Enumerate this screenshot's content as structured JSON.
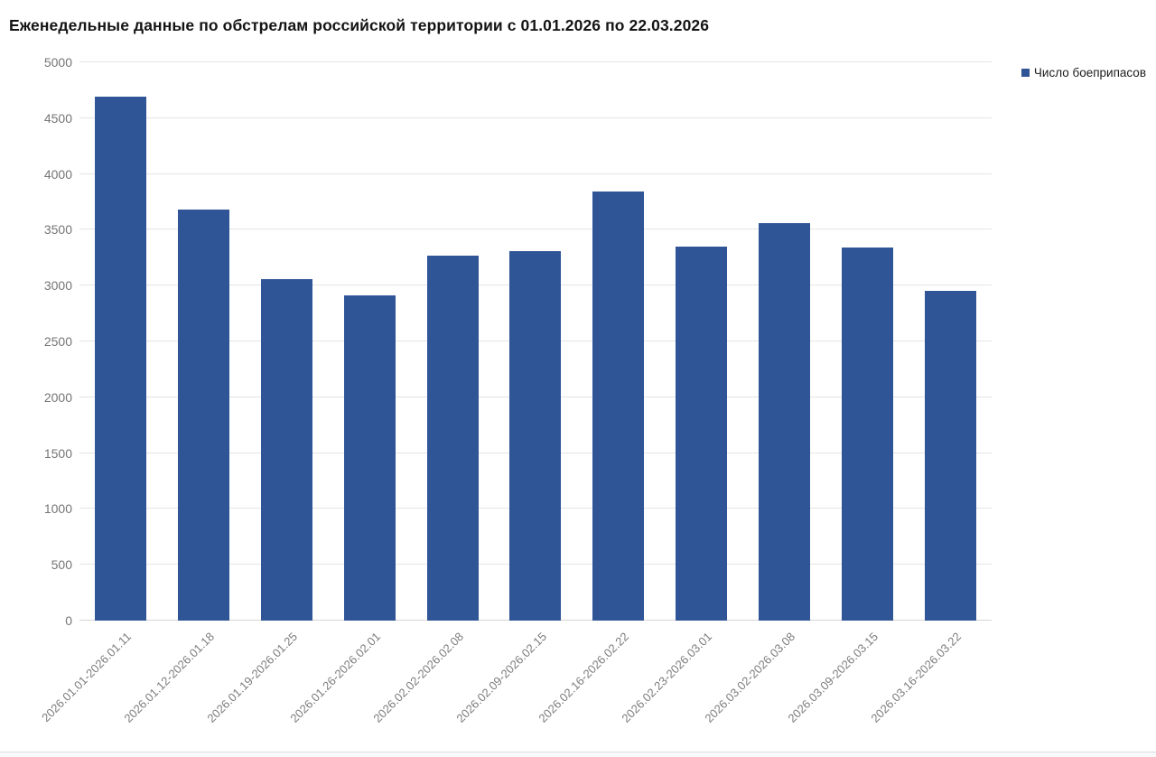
{
  "title": "Еженедельные данные по обстрелам российской территории с 01.01.2026 по 22.03.2026",
  "legend": {
    "label": "Число боеприпасов"
  },
  "colors": {
    "bar": "#2f5597",
    "title_text": "#141414",
    "axis_text": "#757575",
    "gridline": "#e4e4e4",
    "baseline": "#d6d6d6"
  },
  "chart_data": {
    "type": "bar",
    "title": "Еженедельные данные по обстрелам российской территории с 01.01.2026 по 22.03.2026",
    "categories": [
      "2026.01.01-2026.01.11",
      "2026.01.12-2026.01.18",
      "2026.01.19-2026.01.25",
      "2026.01.26-2026.02.01",
      "2026.02.02-2026.02.08",
      "2026.02.09-2026.02.15",
      "2026.02.16-2026.02.22",
      "2026.02.23-2026.03.01",
      "2026.03.02-2026.03.08",
      "2026.03.09-2026.03.15",
      "2026.03.16-2026.03.22"
    ],
    "series": [
      {
        "name": "Число боеприпасов",
        "values": [
          4690,
          3680,
          3060,
          2910,
          3270,
          3310,
          3840,
          3350,
          3560,
          3340,
          2950
        ]
      }
    ],
    "values": [
      4690,
      3680,
      3060,
      2910,
      3270,
      3310,
      3840,
      3350,
      3560,
      3340,
      2950
    ],
    "xlabel": "",
    "ylabel": "",
    "ylim": [
      0,
      5000
    ],
    "yticks": [
      0,
      500,
      1000,
      1500,
      2000,
      2500,
      3000,
      3500,
      4000,
      4500,
      5000
    ],
    "grid": true,
    "legend_position": "top-right",
    "bar_color": "#2f5597"
  }
}
